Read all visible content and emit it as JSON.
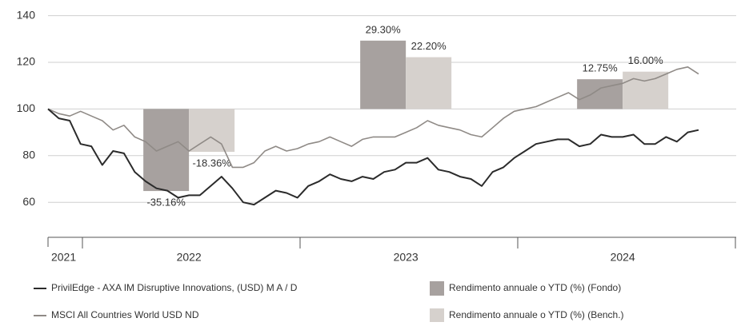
{
  "chart_data": {
    "type": "line",
    "categories": [
      null,
      "2021",
      null,
      null,
      null,
      null,
      null,
      null,
      null,
      null,
      null,
      null,
      null,
      "2022",
      null,
      null,
      null,
      null,
      null,
      null,
      null,
      null,
      null,
      null,
      null,
      null,
      null,
      null,
      null,
      null,
      null,
      null,
      null,
      "2023",
      null,
      null,
      null,
      null,
      null,
      null,
      null,
      null,
      null,
      null,
      null,
      null,
      null,
      null,
      null,
      null,
      null,
      null,
      null,
      "2024",
      null,
      null,
      null,
      null,
      null,
      null,
      null
    ],
    "series": [
      {
        "name": "PrivilEdge - AXA IM Disruptive Innovations, (USD) M A / D",
        "type": "line",
        "color": "#2b2b2b",
        "values": [
          100,
          96,
          95,
          85,
          84,
          76,
          82,
          81,
          73,
          69,
          66,
          65,
          62,
          63,
          63,
          67,
          71,
          66,
          60,
          59,
          62,
          65,
          64,
          62,
          67,
          69,
          72,
          70,
          69,
          71,
          70,
          73,
          74,
          77,
          77,
          79,
          74,
          73,
          71,
          70,
          67,
          73,
          75,
          79,
          82,
          85,
          86,
          87,
          87,
          84,
          85,
          89,
          88,
          88,
          89,
          85,
          85,
          88,
          86,
          90,
          91
        ]
      },
      {
        "name": "MSCI All Countries World USD ND",
        "type": "line",
        "color": "#8f8a86",
        "values": [
          100,
          98,
          97,
          99,
          97,
          95,
          91,
          93,
          88,
          86,
          82,
          84,
          86,
          82,
          85,
          88,
          85,
          75,
          75,
          77,
          82,
          84,
          82,
          83,
          85,
          86,
          88,
          86,
          84,
          87,
          88,
          88,
          88,
          90,
          92,
          95,
          93,
          92,
          91,
          89,
          88,
          92,
          96,
          99,
          100,
          101,
          103,
          105,
          107,
          104,
          106,
          109,
          110,
          111,
          113,
          112,
          113,
          115,
          117,
          118,
          115
        ]
      },
      {
        "name": "Rendimento annuale o YTD (%) (Fondo)",
        "type": "bar",
        "color": "#a7a19f",
        "values": [
          null,
          null,
          null,
          null,
          null,
          null,
          null,
          null,
          null,
          null,
          null,
          null,
          null,
          -35.16,
          null,
          null,
          null,
          null,
          null,
          null,
          null,
          null,
          null,
          null,
          null,
          null,
          null,
          null,
          null,
          null,
          null,
          null,
          null,
          29.3,
          null,
          null,
          null,
          null,
          null,
          null,
          null,
          null,
          null,
          null,
          null,
          null,
          null,
          null,
          null,
          null,
          null,
          null,
          null,
          12.75,
          null,
          null,
          null,
          null,
          null,
          null,
          null
        ],
        "value_labels": [
          null,
          null,
          null,
          null,
          null,
          null,
          null,
          null,
          null,
          null,
          null,
          null,
          null,
          "-35.16%",
          null,
          null,
          null,
          null,
          null,
          null,
          null,
          null,
          null,
          null,
          null,
          null,
          null,
          null,
          null,
          null,
          null,
          null,
          null,
          "29.30%",
          null,
          null,
          null,
          null,
          null,
          null,
          null,
          null,
          null,
          null,
          null,
          null,
          null,
          null,
          null,
          null,
          null,
          null,
          null,
          "12.75%",
          null,
          null,
          null,
          null,
          null,
          null,
          null
        ]
      },
      {
        "name": "Rendimento annuale o YTD (%) (Bench.)",
        "type": "bar",
        "color": "#d6d1cd",
        "values": [
          null,
          null,
          null,
          null,
          null,
          null,
          null,
          null,
          null,
          null,
          null,
          null,
          null,
          -18.36,
          null,
          null,
          null,
          null,
          null,
          null,
          null,
          null,
          null,
          null,
          null,
          null,
          null,
          null,
          null,
          null,
          null,
          null,
          null,
          22.2,
          null,
          null,
          null,
          null,
          null,
          null,
          null,
          null,
          null,
          null,
          null,
          null,
          null,
          null,
          null,
          null,
          null,
          null,
          null,
          16,
          null,
          null,
          null,
          null,
          null,
          null,
          null
        ],
        "value_labels": [
          null,
          null,
          null,
          null,
          null,
          null,
          null,
          null,
          null,
          null,
          null,
          null,
          null,
          "-18.36%",
          null,
          null,
          null,
          null,
          null,
          null,
          null,
          null,
          null,
          null,
          null,
          null,
          null,
          null,
          null,
          null,
          null,
          null,
          null,
          "22.20%",
          null,
          null,
          null,
          null,
          null,
          null,
          null,
          null,
          null,
          null,
          null,
          null,
          null,
          null,
          null,
          null,
          null,
          null,
          null,
          "16.00%",
          null,
          null,
          null,
          null,
          null,
          null,
          null
        ]
      }
    ],
    "ylim": [
      45,
      145
    ],
    "yticks": [
      60,
      80,
      100,
      120,
      140
    ],
    "grid": true,
    "legend": "bottom"
  }
}
